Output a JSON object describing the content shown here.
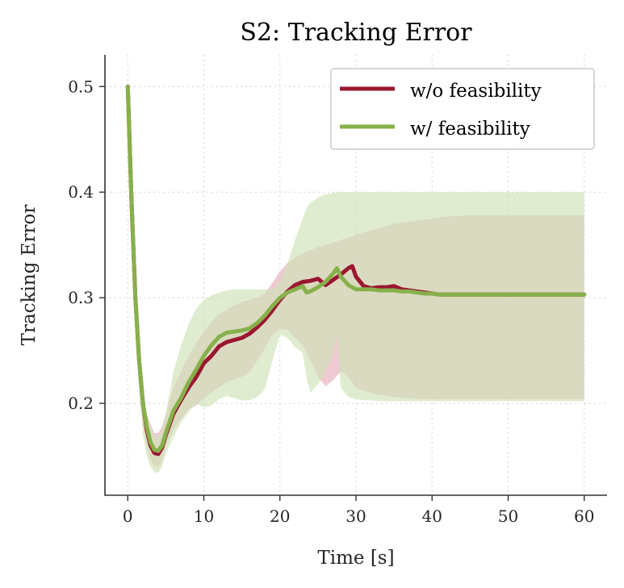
{
  "chart_data": {
    "type": "line",
    "title": "S2: Tracking Error",
    "xlabel": "Time [s]",
    "ylabel": "Tracking Error",
    "xlim": [
      -3,
      63
    ],
    "ylim": [
      0.113,
      0.53
    ],
    "x_ticks": [
      0,
      10,
      20,
      30,
      40,
      50,
      60
    ],
    "y_ticks": [
      0.2,
      0.3,
      0.4,
      0.5
    ],
    "x_tick_labels": [
      "0",
      "10",
      "20",
      "30",
      "40",
      "50",
      "60"
    ],
    "y_tick_labels": [
      "0.2",
      "0.3",
      "0.4",
      "0.5"
    ],
    "grid": true,
    "legend_position": "top-right",
    "series": [
      {
        "name": "w/o feasibility",
        "color": "#9b1631",
        "band_color": "#e2a9b6",
        "x": [
          0,
          0.5,
          1,
          1.5,
          2,
          2.5,
          3,
          3.5,
          4,
          4.5,
          5,
          6,
          7,
          8,
          9,
          10,
          11,
          12,
          13,
          14,
          15,
          16,
          17,
          18,
          19,
          20,
          21,
          22,
          23,
          24,
          25,
          26,
          27,
          28,
          29,
          29.5,
          30,
          31,
          32,
          33,
          34,
          35,
          36,
          37,
          38,
          39,
          40,
          41,
          42,
          45,
          50,
          55,
          60
        ],
        "values": [
          0.5,
          0.39,
          0.3,
          0.24,
          0.2,
          0.175,
          0.16,
          0.153,
          0.152,
          0.158,
          0.17,
          0.19,
          0.203,
          0.215,
          0.225,
          0.238,
          0.245,
          0.254,
          0.258,
          0.26,
          0.262,
          0.266,
          0.272,
          0.279,
          0.288,
          0.298,
          0.306,
          0.312,
          0.315,
          0.316,
          0.318,
          0.312,
          0.317,
          0.322,
          0.328,
          0.33,
          0.32,
          0.311,
          0.309,
          0.31,
          0.31,
          0.311,
          0.308,
          0.307,
          0.306,
          0.305,
          0.304,
          0.303,
          0.303,
          0.303,
          0.303,
          0.303,
          0.303
        ],
        "lower": [
          0.5,
          0.38,
          0.29,
          0.22,
          0.18,
          0.16,
          0.147,
          0.14,
          0.14,
          0.145,
          0.16,
          0.175,
          0.185,
          0.195,
          0.198,
          0.205,
          0.21,
          0.215,
          0.22,
          0.223,
          0.225,
          0.23,
          0.24,
          0.252,
          0.265,
          0.27,
          0.27,
          0.262,
          0.255,
          0.24,
          0.225,
          0.216,
          0.222,
          0.23,
          0.225,
          0.22,
          0.215,
          0.212,
          0.21,
          0.208,
          0.207,
          0.206,
          0.205,
          0.205,
          0.204,
          0.204,
          0.204,
          0.204,
          0.204,
          0.204,
          0.204,
          0.204,
          0.204
        ],
        "upper": [
          0.51,
          0.41,
          0.31,
          0.25,
          0.21,
          0.19,
          0.18,
          0.172,
          0.172,
          0.178,
          0.19,
          0.215,
          0.23,
          0.245,
          0.257,
          0.268,
          0.277,
          0.284,
          0.289,
          0.293,
          0.296,
          0.298,
          0.3,
          0.304,
          0.314,
          0.325,
          0.333,
          0.338,
          0.342,
          0.345,
          0.348,
          0.35,
          0.352,
          0.355,
          0.357,
          0.358,
          0.36,
          0.362,
          0.364,
          0.366,
          0.368,
          0.37,
          0.371,
          0.372,
          0.373,
          0.374,
          0.375,
          0.376,
          0.377,
          0.378,
          0.378,
          0.378,
          0.378
        ]
      },
      {
        "name": "w/ feasibility",
        "color": "#87b04a",
        "band_color": "#cfe2b5",
        "x": [
          0,
          0.5,
          1,
          1.5,
          2,
          2.5,
          3,
          3.5,
          4,
          4.5,
          5,
          6,
          7,
          8,
          9,
          10,
          11,
          12,
          13,
          14,
          15,
          16,
          17,
          18,
          19,
          20,
          21,
          22,
          23,
          23.5,
          24,
          25,
          26,
          27,
          27.5,
          28,
          29,
          30,
          31,
          32,
          33,
          34,
          35,
          36,
          37,
          38,
          39,
          40,
          41,
          42,
          45,
          50,
          55,
          60
        ],
        "values": [
          0.5,
          0.39,
          0.3,
          0.24,
          0.2,
          0.178,
          0.163,
          0.156,
          0.155,
          0.16,
          0.172,
          0.193,
          0.205,
          0.22,
          0.232,
          0.245,
          0.255,
          0.263,
          0.267,
          0.268,
          0.269,
          0.271,
          0.276,
          0.283,
          0.292,
          0.3,
          0.305,
          0.308,
          0.311,
          0.305,
          0.306,
          0.31,
          0.315,
          0.323,
          0.328,
          0.32,
          0.312,
          0.308,
          0.308,
          0.308,
          0.307,
          0.307,
          0.307,
          0.306,
          0.306,
          0.305,
          0.304,
          0.304,
          0.303,
          0.303,
          0.303,
          0.303,
          0.303,
          0.303
        ],
        "lower": [
          0.5,
          0.37,
          0.28,
          0.21,
          0.17,
          0.15,
          0.14,
          0.135,
          0.134,
          0.14,
          0.152,
          0.168,
          0.182,
          0.192,
          0.2,
          0.196,
          0.198,
          0.204,
          0.207,
          0.205,
          0.203,
          0.203,
          0.206,
          0.213,
          0.24,
          0.265,
          0.262,
          0.253,
          0.248,
          0.224,
          0.21,
          0.218,
          0.23,
          0.248,
          0.262,
          0.215,
          0.206,
          0.204,
          0.203,
          0.203,
          0.202,
          0.202,
          0.202,
          0.202,
          0.202,
          0.202,
          0.202,
          0.202,
          0.202,
          0.202,
          0.202,
          0.202,
          0.202,
          0.202
        ],
        "upper": [
          0.51,
          0.41,
          0.31,
          0.25,
          0.21,
          0.19,
          0.178,
          0.17,
          0.168,
          0.175,
          0.19,
          0.23,
          0.255,
          0.275,
          0.29,
          0.298,
          0.302,
          0.305,
          0.307,
          0.308,
          0.308,
          0.308,
          0.308,
          0.308,
          0.308,
          0.315,
          0.332,
          0.355,
          0.375,
          0.385,
          0.39,
          0.395,
          0.398,
          0.399,
          0.4,
          0.4,
          0.4,
          0.4,
          0.4,
          0.4,
          0.4,
          0.4,
          0.4,
          0.4,
          0.4,
          0.4,
          0.4,
          0.4,
          0.4,
          0.4,
          0.4,
          0.4,
          0.4,
          0.4
        ]
      }
    ]
  }
}
